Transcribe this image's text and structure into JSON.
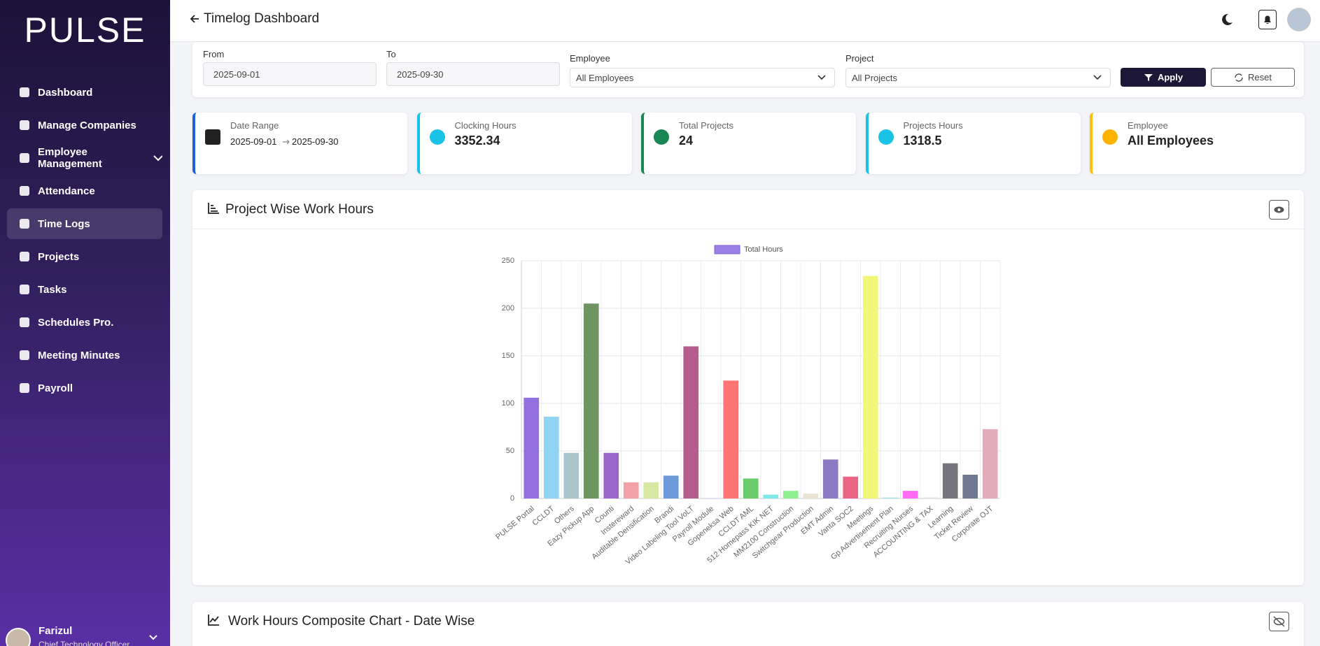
{
  "sidebar": {
    "logo": "PULSE",
    "menu": [
      "Dashboard",
      "Manage Companies",
      "Employee Management",
      "Attendance",
      "Time Logs",
      "Projects",
      "Tasks",
      "Schedules Pro.",
      "Meeting Minutes",
      "Payroll"
    ],
    "active": 4,
    "user": {
      "name": "Farizul",
      "role": "Chief Technology Officer"
    }
  },
  "header": {
    "title": "Timelog Dashboard"
  },
  "filters": {
    "from_label": "From",
    "from": "2025-09-01",
    "to_label": "To",
    "to": "2025-09-30",
    "employee_label": "Employee",
    "employee": "All Employees",
    "project_label": "Project",
    "project": "All Projects",
    "apply": "Apply",
    "reset": "Reset"
  },
  "cards": [
    {
      "label": "Date Range",
      "value": "2025-09-01",
      "value2": "2025-09-30"
    },
    {
      "label": "Clocking Hours",
      "value": 3352.34
    },
    {
      "label": "Total Projects",
      "value": 24
    },
    {
      "label": "Projects Hours",
      "value": 1318.5
    },
    {
      "label": "Employee",
      "value": "All Employees"
    }
  ],
  "panels": [
    {
      "title": "Project Wise Work Hours"
    },
    {
      "title": "Work Hours Composite Chart - Date Wise"
    }
  ],
  "chart": {
    "type": "bar",
    "categories": [
      "PULSE Portal",
      "CCLDT",
      "Others",
      "Eazy Pickup App",
      "Counti",
      "Instereward",
      "Auditable Densification",
      "Brandi",
      "Video Labeling Tool VoLT",
      "Payroll Module",
      "Gopeneksa Web",
      "CCLDT AML",
      "512 Homepass KIK NET",
      "MM2100 Construction",
      "Switchgear Production",
      "EMT Admin",
      "Vanta SOC2",
      "Meetings",
      "Gp Advertisement Plan",
      "Recruiting Nurses",
      "ACCOUNTING & TAX",
      "Learning",
      "Ticket Review",
      "Corporate OJT"
    ],
    "series": [
      {
        "name": "Total Hours",
        "color": "#9b7fe6",
        "values": [
          106,
          86,
          48,
          205,
          48,
          17,
          17,
          24,
          160,
          0.5,
          124,
          21,
          4,
          8,
          5,
          41,
          23,
          234,
          1,
          8,
          1,
          37,
          25,
          73
        ]
      }
    ],
    "bar_colors": [
      "#9370e0",
      "#8fd4f2",
      "#aac6cc",
      "#6e9461",
      "#9a66cc",
      "#f2a2a6",
      "#d6e8a2",
      "#6c9ad8",
      "#b55e8e",
      "#d9c9e9",
      "#ff7474",
      "#6acb6a",
      "#7fe9ea",
      "#8ff08f",
      "#e9e3d4",
      "#8e7ac2",
      "#ea6484",
      "#f2f77a",
      "#a6e3e3",
      "#ff6bf2",
      "#e2dde2",
      "#74747d",
      "#6f7890",
      "#e3acbd"
    ],
    "ylim": [
      0,
      250
    ],
    "yticks": [
      0,
      50,
      100,
      150,
      200,
      250
    ],
    "grid": true
  }
}
